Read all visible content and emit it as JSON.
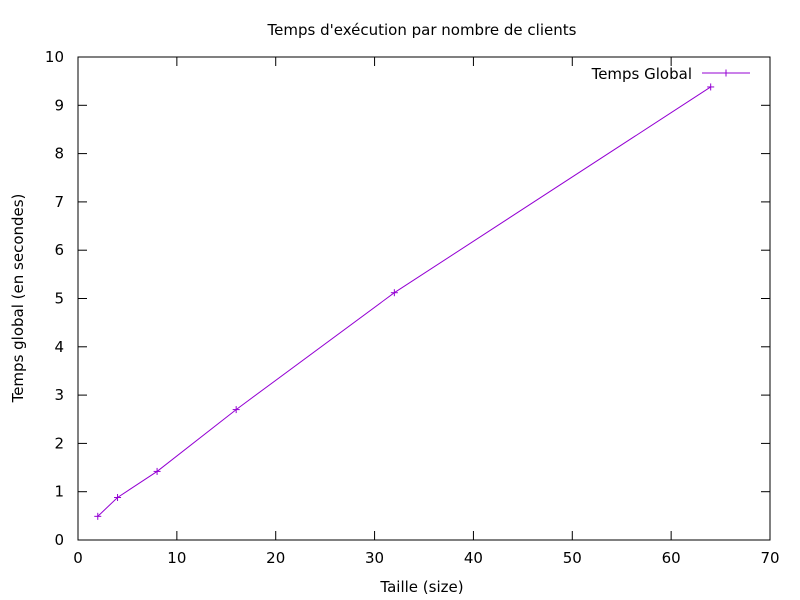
{
  "chart_data": {
    "type": "line",
    "title": "Temps d'exécution par nombre de clients",
    "xlabel": "Taille (size)",
    "ylabel": "Temps global (en secondes)",
    "xlim": [
      0,
      70
    ],
    "ylim": [
      0,
      10
    ],
    "xticks": [
      0,
      10,
      20,
      30,
      40,
      50,
      60,
      70
    ],
    "yticks": [
      0,
      1,
      2,
      3,
      4,
      5,
      6,
      7,
      8,
      9,
      10
    ],
    "grid": false,
    "legend_position": "top-right",
    "series": [
      {
        "name": "Temps Global",
        "color": "#9400d3",
        "marker": "plus",
        "x": [
          2,
          4,
          8,
          16,
          32,
          64
        ],
        "y": [
          0.49,
          0.88,
          1.42,
          2.7,
          5.12,
          9.38
        ]
      }
    ]
  }
}
